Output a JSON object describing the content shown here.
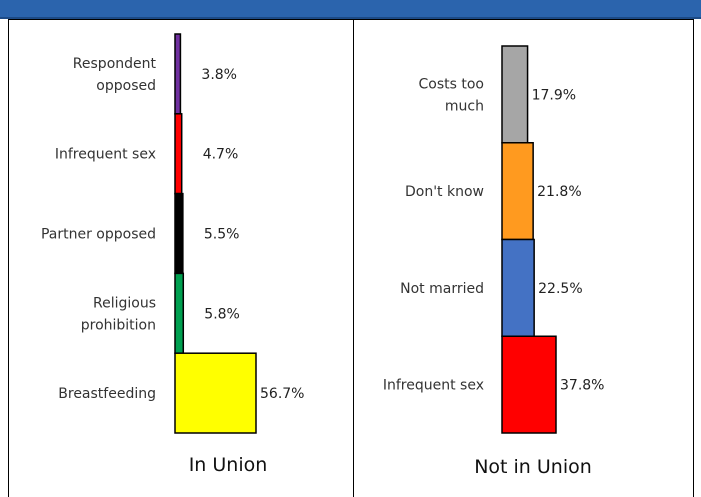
{
  "header": {
    "title": ""
  },
  "chart_data": [
    {
      "type": "bar",
      "title": "In Union",
      "categories": [
        [
          "Respondent",
          "opposed"
        ],
        [
          "Infrequent sex"
        ],
        [
          "Partner opposed"
        ],
        [
          "Religious",
          "prohibition"
        ],
        [
          "Breastfeeding"
        ]
      ],
      "values": [
        3.8,
        4.7,
        5.5,
        5.8,
        56.7
      ],
      "value_labels": [
        "3.8%",
        "4.7%",
        "5.5%",
        "5.8%",
        "56.7%"
      ],
      "colors": [
        "#7030a0",
        "#ff0000",
        "#000000",
        "#00a050",
        "#ffff00"
      ],
      "unit": "%"
    },
    {
      "type": "bar",
      "title": "Not in Union",
      "categories": [
        [
          "Costs too",
          "much"
        ],
        [
          "Don't know"
        ],
        [
          "Not married"
        ],
        [
          "Infrequent sex"
        ]
      ],
      "values": [
        17.9,
        21.8,
        22.5,
        37.8
      ],
      "value_labels": [
        "17.9%",
        "21.8%",
        "22.5%",
        "37.8%"
      ],
      "colors": [
        "#a6a6a6",
        "#ff9a1f",
        "#4472c4",
        "#ff0000"
      ],
      "unit": "%"
    }
  ]
}
